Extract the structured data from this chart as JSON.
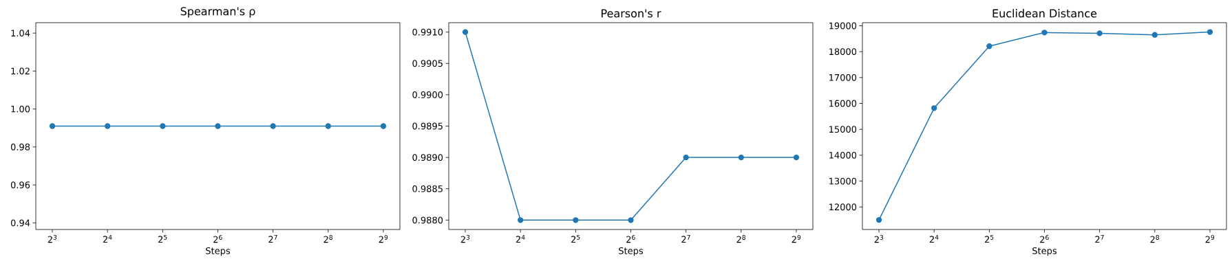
{
  "chart_data": [
    {
      "type": "line",
      "title": "Spearman's ρ",
      "xlabel": "Steps",
      "log": "x",
      "marker": "circle",
      "line_style": "solid",
      "x": [
        8,
        16,
        32,
        64,
        128,
        256,
        512
      ],
      "series": [
        {
          "color": "#1f77b4",
          "values": [
            0.991,
            0.991,
            0.991,
            0.991,
            0.991,
            0.991,
            0.991
          ]
        }
      ],
      "xlim": [
        6.498,
        630.3
      ],
      "xticks": [
        {
          "value": 8,
          "label": "2$^{3}$"
        },
        {
          "value": 16,
          "label": "2$^{4}$"
        },
        {
          "value": 32,
          "label": "2$^{5}$"
        },
        {
          "value": 64,
          "label": "2$^{6}$"
        },
        {
          "value": 128,
          "label": "2$^{7}$"
        },
        {
          "value": 256,
          "label": "2$^{8}$"
        },
        {
          "value": 512,
          "label": "2$^{9}$"
        }
      ],
      "ylim": [
        0.9365,
        1.0455
      ],
      "yticks": [
        0.94,
        0.96,
        0.98,
        {
          "value": 1.0,
          "label": "1.00"
        },
        1.02,
        1.04
      ]
    },
    {
      "type": "line",
      "title": "Pearson's r",
      "xlabel": "Steps",
      "log": "x",
      "marker": "circle",
      "line_style": "solid",
      "x": [
        8,
        16,
        32,
        64,
        128,
        256,
        512
      ],
      "series": [
        {
          "color": "#1f77b4",
          "values": [
            0.991,
            0.988,
            0.988,
            0.988,
            0.989,
            0.989,
            0.989
          ]
        }
      ],
      "xlim": [
        6.498,
        630.3
      ],
      "xticks": [
        {
          "value": 8,
          "label": "2$^{3}$"
        },
        {
          "value": 16,
          "label": "2$^{4}$"
        },
        {
          "value": 32,
          "label": "2$^{5}$"
        },
        {
          "value": 64,
          "label": "2$^{6}$"
        },
        {
          "value": 128,
          "label": "2$^{7}$"
        },
        {
          "value": 256,
          "label": "2$^{8}$"
        },
        {
          "value": 512,
          "label": "2$^{9}$"
        }
      ],
      "ylim": [
        0.98785,
        0.99115
      ],
      "yticks": [
        {
          "value": 0.988,
          "label": "0.9880"
        },
        0.9885,
        {
          "value": 0.989,
          "label": "0.9890"
        },
        0.9895,
        {
          "value": 0.99,
          "label": "0.9900"
        },
        0.9905,
        {
          "value": 0.991,
          "label": "0.9910"
        }
      ]
    },
    {
      "type": "line",
      "title": "Euclidean Distance",
      "xlabel": "Steps",
      "log": "x",
      "marker": "circle",
      "line_style": "solid",
      "x": [
        8,
        16,
        32,
        64,
        128,
        256,
        512
      ],
      "series": [
        {
          "color": "#1f77b4",
          "values": [
            11500,
            15820,
            18210,
            18740,
            18710,
            18650,
            18760
          ]
        }
      ],
      "xlim": [
        6.498,
        630.3
      ],
      "xticks": [
        {
          "value": 8,
          "label": "2$^{3}$"
        },
        {
          "value": 16,
          "label": "2$^{4}$"
        },
        {
          "value": 32,
          "label": "2$^{5}$"
        },
        {
          "value": 64,
          "label": "2$^{6}$"
        },
        {
          "value": 128,
          "label": "2$^{7}$"
        },
        {
          "value": 256,
          "label": "2$^{8}$"
        },
        {
          "value": 512,
          "label": "2$^{9}$"
        }
      ],
      "ylim": [
        11130,
        19120
      ],
      "yticks": [
        12000,
        13000,
        14000,
        15000,
        16000,
        17000,
        18000,
        19000
      ]
    }
  ]
}
